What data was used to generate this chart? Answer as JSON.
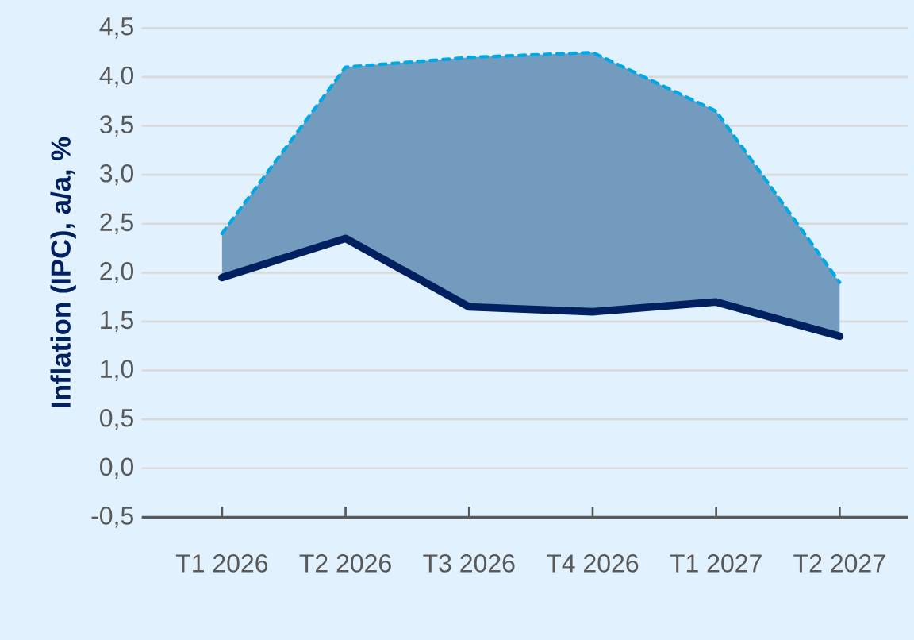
{
  "chart_data": {
    "type": "line",
    "ylabel": "Inflation (IPC), a/a, %",
    "categories": [
      "T1 2026",
      "T2 2026",
      "T3 2026",
      "T4 2026",
      "T1 2027",
      "T2 2027"
    ],
    "series": [
      {
        "color": "#002060",
        "values": [
          1.95,
          2.35,
          1.65,
          1.6,
          1.7,
          1.35
        ],
        "lower": [
          1.95,
          2.35,
          1.65,
          1.6,
          1.7,
          1.35
        ],
        "upper": [
          2.4,
          4.1,
          4.2,
          4.25,
          3.65,
          1.9
        ]
      },
      {
        "color": "#00a9e6",
        "values": [
          2.4,
          4.1,
          4.2,
          4.25,
          3.65,
          1.9
        ],
        "line_style": "dashed"
      }
    ],
    "ylim": [
      -0.5,
      4.5
    ],
    "yticks": [
      {
        "value": -0.5,
        "label": "-0,5"
      },
      {
        "value": 0,
        "label": "0,0"
      },
      {
        "value": 0.5,
        "label": "0,5"
      },
      {
        "value": 1,
        "label": "1,0"
      },
      {
        "value": 1.5,
        "label": "1,5"
      },
      {
        "value": 2,
        "label": "2,0"
      },
      {
        "value": 2.5,
        "label": "2,5"
      },
      {
        "value": 3,
        "label": "3,0"
      },
      {
        "value": 3.5,
        "label": "3,5"
      },
      {
        "value": 4,
        "label": "4,0"
      },
      {
        "value": 4.5,
        "label": "4,5"
      }
    ],
    "grid": "y"
  }
}
